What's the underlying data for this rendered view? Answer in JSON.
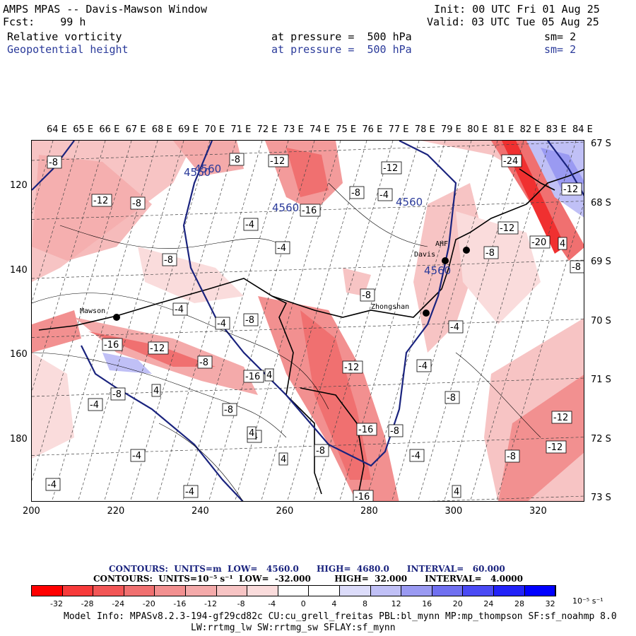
{
  "header": {
    "title": "AMPS MPAS -- Davis-Mawson Window",
    "fcst": "Fcst:    99 h",
    "init": "Init: 00 UTC Fri 01 Aug 25",
    "valid": "Valid: 03 UTC Tue 05 Aug 25",
    "field1": {
      "name": "Relative vorticity",
      "level": "at pressure =  500 hPa",
      "sm": "sm= 2"
    },
    "field2": {
      "name": "Geopotential height",
      "level": "at pressure =  500 hPa",
      "sm": "sm= 2"
    }
  },
  "axes": {
    "lon_labels": [
      "64 E",
      "65 E",
      "66 E",
      "67 E",
      "68 E",
      "69 E",
      "70 E",
      "71 E",
      "72 E",
      "73 E",
      "74 E",
      "75 E",
      "76 E",
      "77 E",
      "78 E",
      "79 E",
      "80 E",
      "81 E",
      "82 E",
      "83 E",
      "84 E"
    ],
    "lat_labels": [
      "67 S",
      "68 S",
      "69 S",
      "70 S",
      "71 S",
      "72 S",
      "73 S"
    ],
    "y_ticks": [
      "120",
      "140",
      "160",
      "180"
    ],
    "x_ticks": [
      "200",
      "220",
      "240",
      "260",
      "280",
      "300",
      "320"
    ]
  },
  "stations": [
    {
      "name": "Mawson"
    },
    {
      "name": "Davis"
    },
    {
      "name": "Zhongshan"
    },
    {
      "name": "AHF"
    }
  ],
  "height_contour_labels": [
    "4560",
    "4560",
    "4560",
    "4560",
    "4560"
  ],
  "vorticity_labels": [
    "-8",
    "-8",
    "-12",
    "-12",
    "-8",
    "-4",
    "-12",
    "-8",
    "-4",
    "-4",
    "-24",
    "-12",
    "-8",
    "-16",
    "-8",
    "-12",
    "-20",
    "4",
    "-8",
    "-8",
    "-4",
    "-8",
    "-4",
    "-16",
    "-12",
    "-8",
    "-16",
    "4",
    "-12",
    "-4",
    "-4",
    "-8",
    "4",
    "-4",
    "-8",
    "-16",
    "-8",
    "-4",
    "4",
    "-8",
    "4",
    "-4",
    "-4",
    "-4",
    "4",
    "-8",
    "-12",
    "-12",
    "-8",
    "-4",
    "-16"
  ],
  "info": {
    "contours1": "CONTOURS:  UNITS=m  LOW=   4560.0      HIGH=  4680.0      INTERVAL=   60.000",
    "contours2": "CONTOURS:  UNITS=10⁻⁵ s⁻¹  LOW=  -32.000        HIGH=  32.000      INTERVAL=   4.0000",
    "model1": "Model Info: MPASv8.2.3-194-gf29cd82c CU:cu_grell_freitas PBL:bl_mynn MP:mp_thompson SF:sf_noahmp 8.0",
    "model2": "LW:rrtmg_lw SW:rrtmg_sw SFLAY:sf_mynn"
  },
  "colorbar": {
    "labels": [
      "-32",
      "-28",
      "-24",
      "-20",
      "-16",
      "-12",
      "-8",
      "-4",
      "0",
      "4",
      "8",
      "12",
      "16",
      "20",
      "24",
      "28",
      "32"
    ],
    "unit": "10⁻⁵ s⁻¹",
    "colors": [
      "#ff0000",
      "#f73a3a",
      "#f25656",
      "#f07070",
      "#f29090",
      "#f4aaaa",
      "#f7c4c4",
      "#fadcdc",
      "#ffffff",
      "#ffffff",
      "#dcdcfa",
      "#c0c0f6",
      "#9a9af2",
      "#7070f0",
      "#4a4af4",
      "#2222f8",
      "#0000ff"
    ]
  }
}
